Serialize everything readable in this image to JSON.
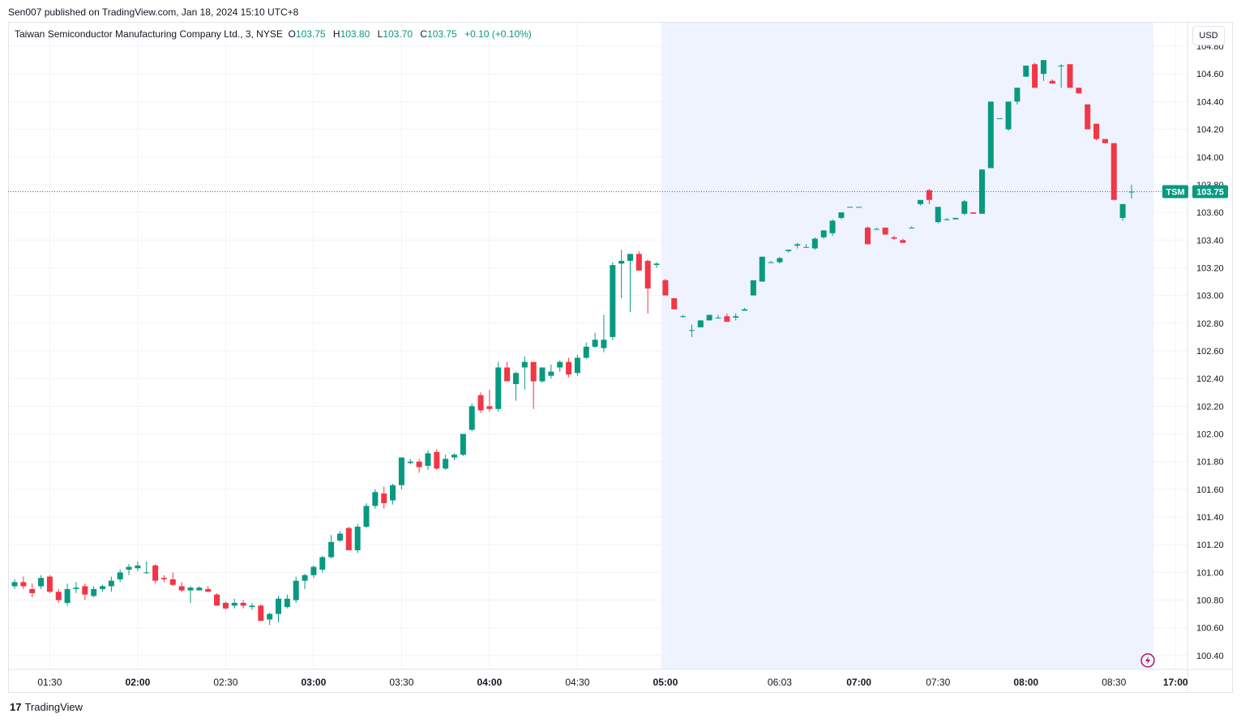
{
  "header": {
    "published": "Sen007 published on TradingView.com, Jan 18, 2024 15:10 UTC+8"
  },
  "legend": {
    "symbol": "Taiwan Semiconductor Manufacturing Company Ltd., 3, NYSE",
    "o_label": "O",
    "o_value": "103.75",
    "h_label": "H",
    "h_value": "103.80",
    "l_label": "L",
    "l_value": "103.70",
    "c_label": "C",
    "c_value": "103.75",
    "change": "+0.10 (+0.10%)"
  },
  "currency": "USD",
  "price_tag": {
    "ticker": "TSM",
    "price": "103.75",
    "value": 103.75
  },
  "footer": {
    "brand": "TradingView",
    "logo": "17"
  },
  "colors": {
    "up": "#089981",
    "down": "#f23645",
    "extended_bg": "#eef3ff",
    "grid": "#f0f3fa",
    "axis_text": "#131722"
  },
  "chart_data": {
    "type": "candlestick",
    "ylim": [
      100.3,
      104.97
    ],
    "y_ticks": [
      "104.80",
      "104.60",
      "104.40",
      "104.20",
      "104.00",
      "103.80",
      "103.60",
      "103.40",
      "103.20",
      "103.00",
      "102.80",
      "102.60",
      "102.40",
      "102.20",
      "102.00",
      "101.80",
      "101.60",
      "101.40",
      "101.20",
      "101.00",
      "100.80",
      "100.60",
      "100.40"
    ],
    "x_ticks": [
      {
        "label": "01:30",
        "bold": false,
        "i": 4
      },
      {
        "label": "02:00",
        "bold": true,
        "i": 14
      },
      {
        "label": "02:30",
        "bold": false,
        "i": 24
      },
      {
        "label": "03:00",
        "bold": true,
        "i": 34
      },
      {
        "label": "03:30",
        "bold": false,
        "i": 44
      },
      {
        "label": "04:00",
        "bold": true,
        "i": 54
      },
      {
        "label": "04:30",
        "bold": false,
        "i": 64
      },
      {
        "label": "05:00",
        "bold": true,
        "i": 74
      },
      {
        "label": "06:03",
        "bold": false,
        "i": 87
      },
      {
        "label": "07:00",
        "bold": true,
        "i": 96
      },
      {
        "label": "07:30",
        "bold": false,
        "i": 105
      },
      {
        "label": "08:00",
        "bold": true,
        "i": 115
      },
      {
        "label": "08:30",
        "bold": false,
        "i": 125
      },
      {
        "label": "17:00",
        "bold": true,
        "i": 132
      }
    ],
    "extended_session": {
      "start_i": 73.5,
      "end_i": 129.5
    },
    "candles": [
      [
        100.9,
        100.95,
        100.88,
        100.93
      ],
      [
        100.93,
        100.97,
        100.88,
        100.9
      ],
      [
        100.88,
        100.92,
        100.82,
        100.85
      ],
      [
        100.9,
        100.98,
        100.88,
        100.96
      ],
      [
        100.97,
        100.98,
        100.85,
        100.86
      ],
      [
        100.86,
        100.88,
        100.78,
        100.8
      ],
      [
        100.78,
        100.92,
        100.76,
        100.88
      ],
      [
        100.88,
        100.93,
        100.85,
        100.89
      ],
      [
        100.9,
        100.92,
        100.8,
        100.84
      ],
      [
        100.83,
        100.9,
        100.82,
        100.88
      ],
      [
        100.88,
        100.91,
        100.86,
        100.9
      ],
      [
        100.9,
        100.97,
        100.86,
        100.94
      ],
      [
        100.95,
        101.02,
        100.93,
        101.0
      ],
      [
        101.02,
        101.06,
        100.98,
        101.04
      ],
      [
        101.03,
        101.08,
        101.01,
        101.05
      ],
      [
        101.0,
        101.08,
        100.99,
        101.0
      ],
      [
        101.05,
        101.06,
        100.92,
        100.94
      ],
      [
        100.96,
        100.98,
        100.93,
        100.95
      ],
      [
        100.95,
        101.0,
        100.9,
        100.91
      ],
      [
        100.9,
        100.93,
        100.86,
        100.87
      ],
      [
        100.87,
        100.9,
        100.78,
        100.89
      ],
      [
        100.87,
        100.9,
        100.87,
        100.89
      ],
      [
        100.88,
        100.9,
        100.86,
        100.86
      ],
      [
        100.84,
        100.85,
        100.76,
        100.76
      ],
      [
        100.78,
        100.79,
        100.73,
        100.74
      ],
      [
        100.76,
        100.81,
        100.74,
        100.78
      ],
      [
        100.78,
        100.8,
        100.74,
        100.76
      ],
      [
        100.75,
        100.78,
        100.73,
        100.76
      ],
      [
        100.76,
        100.77,
        100.65,
        100.65
      ],
      [
        100.66,
        100.71,
        100.62,
        100.7
      ],
      [
        100.7,
        100.83,
        100.64,
        100.81
      ],
      [
        100.75,
        100.84,
        100.74,
        100.81
      ],
      [
        100.8,
        100.97,
        100.78,
        100.94
      ],
      [
        100.94,
        100.99,
        100.88,
        100.98
      ],
      [
        100.98,
        101.05,
        100.96,
        101.04
      ],
      [
        101.02,
        101.12,
        101.0,
        101.11
      ],
      [
        101.11,
        101.27,
        101.1,
        101.22
      ],
      [
        101.23,
        101.3,
        101.22,
        101.28
      ],
      [
        101.32,
        101.33,
        101.16,
        101.16
      ],
      [
        101.16,
        101.35,
        101.14,
        101.33
      ],
      [
        101.33,
        101.5,
        101.32,
        101.48
      ],
      [
        101.48,
        101.6,
        101.46,
        101.58
      ],
      [
        101.57,
        101.62,
        101.46,
        101.5
      ],
      [
        101.52,
        101.64,
        101.49,
        101.63
      ],
      [
        101.63,
        101.83,
        101.6,
        101.83
      ],
      [
        101.79,
        101.82,
        101.78,
        101.8
      ],
      [
        101.8,
        101.82,
        101.72,
        101.76
      ],
      [
        101.77,
        101.88,
        101.74,
        101.86
      ],
      [
        101.87,
        101.89,
        101.74,
        101.75
      ],
      [
        101.75,
        101.85,
        101.74,
        101.82
      ],
      [
        101.83,
        101.86,
        101.81,
        101.85
      ],
      [
        101.85,
        102.0,
        101.84,
        102.0
      ],
      [
        102.03,
        102.22,
        102.02,
        102.2
      ],
      [
        102.28,
        102.3,
        102.15,
        102.17
      ],
      [
        102.2,
        102.32,
        102.16,
        102.18
      ],
      [
        102.18,
        102.52,
        102.16,
        102.48
      ],
      [
        102.48,
        102.52,
        102.38,
        102.38
      ],
      [
        102.36,
        102.45,
        102.24,
        102.44
      ],
      [
        102.48,
        102.56,
        102.32,
        102.52
      ],
      [
        102.52,
        102.48,
        102.18,
        102.38
      ],
      [
        102.38,
        102.48,
        102.37,
        102.48
      ],
      [
        102.42,
        102.5,
        102.4,
        102.45
      ],
      [
        102.48,
        102.53,
        102.45,
        102.52
      ],
      [
        102.52,
        102.55,
        102.41,
        102.43
      ],
      [
        102.44,
        102.57,
        102.42,
        102.55
      ],
      [
        102.55,
        102.66,
        102.54,
        102.63
      ],
      [
        102.63,
        102.73,
        102.62,
        102.68
      ],
      [
        102.62,
        102.86,
        102.59,
        102.68
      ],
      [
        102.7,
        103.24,
        102.68,
        103.22
      ],
      [
        103.23,
        103.33,
        102.98,
        103.25
      ],
      [
        103.25,
        103.3,
        102.88,
        103.3
      ],
      [
        103.3,
        103.32,
        103.18,
        103.18
      ],
      [
        103.25,
        103.26,
        102.87,
        103.05
      ],
      [
        103.22,
        103.24,
        103.2,
        103.23
      ],
      [
        103.11,
        103.12,
        103.0,
        103.0
      ],
      [
        102.98,
        102.98,
        102.9,
        102.9
      ],
      [
        102.85,
        102.86,
        102.84,
        102.85
      ],
      [
        102.75,
        102.79,
        102.7,
        102.75
      ],
      [
        102.77,
        102.82,
        102.77,
        102.82
      ],
      [
        102.82,
        102.86,
        102.82,
        102.86
      ],
      [
        102.84,
        102.86,
        102.84,
        102.84
      ],
      [
        102.85,
        102.87,
        102.81,
        102.81
      ],
      [
        102.84,
        102.87,
        102.82,
        102.85
      ],
      [
        102.89,
        102.91,
        102.89,
        102.9
      ],
      [
        103.0,
        103.11,
        103.0,
        103.11
      ],
      [
        103.1,
        103.28,
        103.1,
        103.28
      ],
      [
        103.24,
        103.25,
        103.24,
        103.24
      ],
      [
        103.24,
        103.28,
        103.23,
        103.27
      ],
      [
        103.32,
        103.33,
        103.31,
        103.33
      ],
      [
        103.36,
        103.38,
        103.34,
        103.37
      ],
      [
        103.35,
        103.37,
        103.35,
        103.35
      ],
      [
        103.34,
        103.42,
        103.33,
        103.41
      ],
      [
        103.42,
        103.47,
        103.41,
        103.47
      ],
      [
        103.45,
        103.55,
        103.43,
        103.54
      ],
      [
        103.56,
        103.6,
        103.55,
        103.6
      ],
      [
        103.64,
        103.64,
        103.64,
        103.64
      ],
      [
        103.64,
        103.64,
        103.64,
        103.64
      ],
      [
        103.49,
        103.5,
        103.37,
        103.37
      ],
      [
        103.48,
        103.49,
        103.48,
        103.48
      ],
      [
        103.49,
        103.49,
        103.44,
        103.44
      ],
      [
        103.42,
        103.43,
        103.4,
        103.41
      ],
      [
        103.4,
        103.41,
        103.38,
        103.38
      ],
      [
        103.49,
        103.5,
        103.49,
        103.49
      ],
      [
        103.66,
        103.68,
        103.65,
        103.69
      ],
      [
        103.76,
        103.77,
        103.66,
        103.69
      ],
      [
        103.53,
        103.64,
        103.52,
        103.64
      ],
      [
        103.55,
        103.56,
        103.54,
        103.55
      ],
      [
        103.55,
        103.56,
        103.55,
        103.56
      ],
      [
        103.59,
        103.69,
        103.58,
        103.68
      ],
      [
        103.6,
        103.6,
        103.59,
        103.59
      ],
      [
        103.59,
        103.91,
        103.59,
        103.91
      ],
      [
        103.92,
        104.4,
        103.92,
        104.4
      ],
      [
        104.28,
        104.28,
        104.28,
        104.28
      ],
      [
        104.2,
        104.4,
        104.19,
        104.4
      ],
      [
        104.4,
        104.5,
        104.38,
        104.5
      ],
      [
        104.58,
        104.66,
        104.58,
        104.66
      ],
      [
        104.67,
        104.68,
        104.5,
        104.5
      ],
      [
        104.6,
        104.7,
        104.55,
        104.7
      ],
      [
        104.55,
        104.56,
        104.53,
        104.53
      ],
      [
        104.66,
        104.67,
        104.5,
        104.66
      ],
      [
        104.67,
        104.67,
        104.5,
        104.5
      ],
      [
        104.5,
        104.5,
        104.46,
        104.46
      ],
      [
        104.38,
        104.38,
        104.2,
        104.2
      ],
      [
        104.24,
        104.24,
        104.12,
        104.13
      ],
      [
        104.13,
        104.13,
        104.1,
        104.1
      ],
      [
        104.1,
        104.1,
        103.69,
        103.69
      ],
      [
        103.56,
        103.66,
        103.54,
        103.66
      ],
      [
        103.75,
        103.8,
        103.7,
        103.75
      ]
    ]
  }
}
